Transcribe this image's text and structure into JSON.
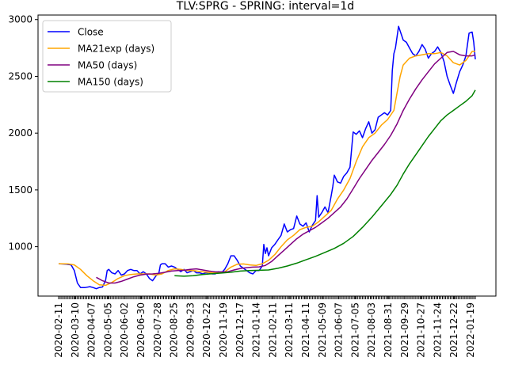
{
  "chart_data": {
    "type": "line",
    "title": "TLV:SPRG - SPRING: interval=1d",
    "xlabel": "",
    "ylabel": "",
    "ylim": [
      565,
      3040
    ],
    "yticks": [
      1000,
      1500,
      2000,
      2500,
      3000
    ],
    "xticks": [
      "2020-02-11",
      "2020-03-10",
      "2020-04-07",
      "2020-05-05",
      "2020-06-02",
      "2020-06-30",
      "2020-07-28",
      "2020-08-25",
      "2020-09-23",
      "2020-10-22",
      "2020-11-19",
      "2020-12-17",
      "2021-01-14",
      "2021-02-11",
      "2021-03-11",
      "2021-04-11",
      "2021-05-09",
      "2021-06-07",
      "2021-07-05",
      "2021-08-03",
      "2021-08-31",
      "2021-09-29",
      "2021-10-27",
      "2021-11-24",
      "2021-12-22",
      "2022-01-19"
    ],
    "grid": false,
    "legend_position": "top-left",
    "series": [
      {
        "name": "Close",
        "color": "#0000ff",
        "points": [
          [
            0,
            850
          ],
          [
            10,
            845
          ],
          [
            16,
            840
          ],
          [
            20,
            790
          ],
          [
            24,
            680
          ],
          [
            28,
            640
          ],
          [
            34,
            640
          ],
          [
            40,
            648
          ],
          [
            44,
            640
          ],
          [
            48,
            630
          ],
          [
            52,
            640
          ],
          [
            56,
            645
          ],
          [
            60,
            705
          ],
          [
            62,
            790
          ],
          [
            64,
            800
          ],
          [
            68,
            770
          ],
          [
            72,
            760
          ],
          [
            76,
            790
          ],
          [
            80,
            750
          ],
          [
            84,
            760
          ],
          [
            88,
            790
          ],
          [
            92,
            800
          ],
          [
            96,
            790
          ],
          [
            100,
            790
          ],
          [
            104,
            760
          ],
          [
            108,
            780
          ],
          [
            112,
            760
          ],
          [
            116,
            720
          ],
          [
            120,
            700
          ],
          [
            124,
            740
          ],
          [
            128,
            770
          ],
          [
            130,
            840
          ],
          [
            132,
            850
          ],
          [
            136,
            850
          ],
          [
            140,
            820
          ],
          [
            144,
            830
          ],
          [
            148,
            820
          ],
          [
            152,
            800
          ],
          [
            156,
            780
          ],
          [
            160,
            800
          ],
          [
            164,
            770
          ],
          [
            168,
            780
          ],
          [
            172,
            790
          ],
          [
            176,
            770
          ],
          [
            180,
            770
          ],
          [
            184,
            760
          ],
          [
            188,
            770
          ],
          [
            192,
            770
          ],
          [
            196,
            760
          ],
          [
            200,
            760
          ],
          [
            204,
            780
          ],
          [
            208,
            770
          ],
          [
            212,
            800
          ],
          [
            216,
            850
          ],
          [
            220,
            920
          ],
          [
            224,
            920
          ],
          [
            228,
            880
          ],
          [
            232,
            830
          ],
          [
            236,
            810
          ],
          [
            240,
            790
          ],
          [
            244,
            770
          ],
          [
            248,
            760
          ],
          [
            252,
            790
          ],
          [
            256,
            790
          ],
          [
            260,
            830
          ],
          [
            262,
            1020
          ],
          [
            264,
            940
          ],
          [
            266,
            990
          ],
          [
            268,
            920
          ],
          [
            272,
            990
          ],
          [
            276,
            1020
          ],
          [
            280,
            1060
          ],
          [
            284,
            1100
          ],
          [
            288,
            1200
          ],
          [
            292,
            1130
          ],
          [
            296,
            1150
          ],
          [
            300,
            1160
          ],
          [
            304,
            1270
          ],
          [
            308,
            1200
          ],
          [
            312,
            1180
          ],
          [
            316,
            1210
          ],
          [
            320,
            1130
          ],
          [
            324,
            1190
          ],
          [
            328,
            1230
          ],
          [
            330,
            1450
          ],
          [
            332,
            1260
          ],
          [
            336,
            1300
          ],
          [
            340,
            1350
          ],
          [
            344,
            1300
          ],
          [
            348,
            1450
          ],
          [
            350,
            1530
          ],
          [
            352,
            1630
          ],
          [
            356,
            1570
          ],
          [
            360,
            1560
          ],
          [
            364,
            1620
          ],
          [
            368,
            1650
          ],
          [
            372,
            1700
          ],
          [
            376,
            2010
          ],
          [
            380,
            1990
          ],
          [
            384,
            2020
          ],
          [
            388,
            1960
          ],
          [
            392,
            2040
          ],
          [
            396,
            2100
          ],
          [
            400,
            2000
          ],
          [
            404,
            2030
          ],
          [
            408,
            2140
          ],
          [
            412,
            2160
          ],
          [
            416,
            2180
          ],
          [
            420,
            2160
          ],
          [
            424,
            2200
          ],
          [
            426,
            2550
          ],
          [
            428,
            2700
          ],
          [
            430,
            2750
          ],
          [
            434,
            2940
          ],
          [
            436,
            2900
          ],
          [
            440,
            2820
          ],
          [
            444,
            2800
          ],
          [
            448,
            2750
          ],
          [
            452,
            2700
          ],
          [
            456,
            2680
          ],
          [
            460,
            2720
          ],
          [
            464,
            2780
          ],
          [
            468,
            2740
          ],
          [
            472,
            2660
          ],
          [
            476,
            2700
          ],
          [
            480,
            2720
          ],
          [
            484,
            2760
          ],
          [
            488,
            2710
          ],
          [
            492,
            2630
          ],
          [
            496,
            2500
          ],
          [
            500,
            2420
          ],
          [
            504,
            2350
          ],
          [
            508,
            2450
          ],
          [
            512,
            2540
          ],
          [
            516,
            2600
          ],
          [
            520,
            2680
          ],
          [
            524,
            2880
          ],
          [
            528,
            2890
          ],
          [
            530,
            2800
          ],
          [
            532,
            2650
          ]
        ]
      },
      {
        "name": "MA21exp (days)",
        "color": "#ffa500",
        "points": [
          [
            0,
            850
          ],
          [
            12,
            848
          ],
          [
            20,
            840
          ],
          [
            28,
            800
          ],
          [
            36,
            745
          ],
          [
            44,
            700
          ],
          [
            52,
            665
          ],
          [
            60,
            660
          ],
          [
            68,
            685
          ],
          [
            76,
            720
          ],
          [
            84,
            745
          ],
          [
            92,
            755
          ],
          [
            100,
            760
          ],
          [
            108,
            760
          ],
          [
            116,
            760
          ],
          [
            124,
            750
          ],
          [
            132,
            760
          ],
          [
            140,
            790
          ],
          [
            148,
            805
          ],
          [
            156,
            800
          ],
          [
            164,
            790
          ],
          [
            172,
            790
          ],
          [
            180,
            782
          ],
          [
            188,
            776
          ],
          [
            196,
            770
          ],
          [
            204,
            768
          ],
          [
            212,
            778
          ],
          [
            220,
            820
          ],
          [
            228,
            845
          ],
          [
            236,
            848
          ],
          [
            244,
            840
          ],
          [
            252,
            835
          ],
          [
            260,
            850
          ],
          [
            268,
            880
          ],
          [
            276,
            930
          ],
          [
            284,
            1000
          ],
          [
            292,
            1060
          ],
          [
            300,
            1100
          ],
          [
            308,
            1150
          ],
          [
            316,
            1170
          ],
          [
            324,
            1180
          ],
          [
            332,
            1220
          ],
          [
            340,
            1270
          ],
          [
            348,
            1320
          ],
          [
            356,
            1420
          ],
          [
            364,
            1500
          ],
          [
            372,
            1600
          ],
          [
            380,
            1750
          ],
          [
            388,
            1880
          ],
          [
            396,
            1960
          ],
          [
            404,
            2000
          ],
          [
            412,
            2070
          ],
          [
            420,
            2120
          ],
          [
            428,
            2200
          ],
          [
            432,
            2350
          ],
          [
            436,
            2500
          ],
          [
            440,
            2600
          ],
          [
            448,
            2660
          ],
          [
            456,
            2680
          ],
          [
            464,
            2690
          ],
          [
            472,
            2700
          ],
          [
            480,
            2700
          ],
          [
            488,
            2710
          ],
          [
            496,
            2680
          ],
          [
            504,
            2620
          ],
          [
            512,
            2600
          ],
          [
            520,
            2640
          ],
          [
            528,
            2720
          ],
          [
            532,
            2720
          ]
        ]
      },
      {
        "name": "MA50 (days)",
        "color": "#800080",
        "points": [
          [
            48,
            730
          ],
          [
            56,
            700
          ],
          [
            64,
            680
          ],
          [
            72,
            680
          ],
          [
            80,
            695
          ],
          [
            88,
            715
          ],
          [
            96,
            735
          ],
          [
            104,
            750
          ],
          [
            112,
            758
          ],
          [
            120,
            760
          ],
          [
            128,
            765
          ],
          [
            136,
            775
          ],
          [
            144,
            785
          ],
          [
            152,
            790
          ],
          [
            160,
            792
          ],
          [
            168,
            800
          ],
          [
            176,
            805
          ],
          [
            184,
            795
          ],
          [
            192,
            785
          ],
          [
            200,
            778
          ],
          [
            208,
            778
          ],
          [
            216,
            780
          ],
          [
            224,
            795
          ],
          [
            232,
            808
          ],
          [
            240,
            815
          ],
          [
            248,
            820
          ],
          [
            256,
            822
          ],
          [
            264,
            835
          ],
          [
            272,
            870
          ],
          [
            280,
            920
          ],
          [
            288,
            970
          ],
          [
            296,
            1020
          ],
          [
            304,
            1070
          ],
          [
            312,
            1110
          ],
          [
            320,
            1140
          ],
          [
            328,
            1170
          ],
          [
            336,
            1210
          ],
          [
            344,
            1250
          ],
          [
            352,
            1300
          ],
          [
            360,
            1350
          ],
          [
            368,
            1420
          ],
          [
            376,
            1510
          ],
          [
            384,
            1600
          ],
          [
            392,
            1680
          ],
          [
            400,
            1760
          ],
          [
            408,
            1830
          ],
          [
            416,
            1900
          ],
          [
            424,
            1980
          ],
          [
            432,
            2080
          ],
          [
            440,
            2200
          ],
          [
            448,
            2300
          ],
          [
            456,
            2390
          ],
          [
            464,
            2470
          ],
          [
            472,
            2540
          ],
          [
            480,
            2610
          ],
          [
            488,
            2660
          ],
          [
            496,
            2710
          ],
          [
            504,
            2720
          ],
          [
            512,
            2690
          ],
          [
            520,
            2680
          ],
          [
            528,
            2680
          ],
          [
            532,
            2690
          ]
        ]
      },
      {
        "name": "MA150 (days)",
        "color": "#008000",
        "points": [
          [
            148,
            745
          ],
          [
            160,
            740
          ],
          [
            172,
            745
          ],
          [
            184,
            755
          ],
          [
            196,
            762
          ],
          [
            208,
            768
          ],
          [
            220,
            775
          ],
          [
            232,
            785
          ],
          [
            244,
            790
          ],
          [
            256,
            792
          ],
          [
            268,
            795
          ],
          [
            280,
            810
          ],
          [
            292,
            830
          ],
          [
            304,
            855
          ],
          [
            316,
            885
          ],
          [
            328,
            915
          ],
          [
            340,
            950
          ],
          [
            352,
            985
          ],
          [
            364,
            1030
          ],
          [
            376,
            1090
          ],
          [
            388,
            1170
          ],
          [
            400,
            1260
          ],
          [
            412,
            1360
          ],
          [
            424,
            1460
          ],
          [
            432,
            1540
          ],
          [
            440,
            1640
          ],
          [
            448,
            1730
          ],
          [
            456,
            1810
          ],
          [
            464,
            1890
          ],
          [
            472,
            1970
          ],
          [
            480,
            2040
          ],
          [
            488,
            2110
          ],
          [
            496,
            2160
          ],
          [
            504,
            2200
          ],
          [
            512,
            2240
          ],
          [
            520,
            2280
          ],
          [
            528,
            2330
          ],
          [
            532,
            2380
          ]
        ]
      }
    ]
  }
}
